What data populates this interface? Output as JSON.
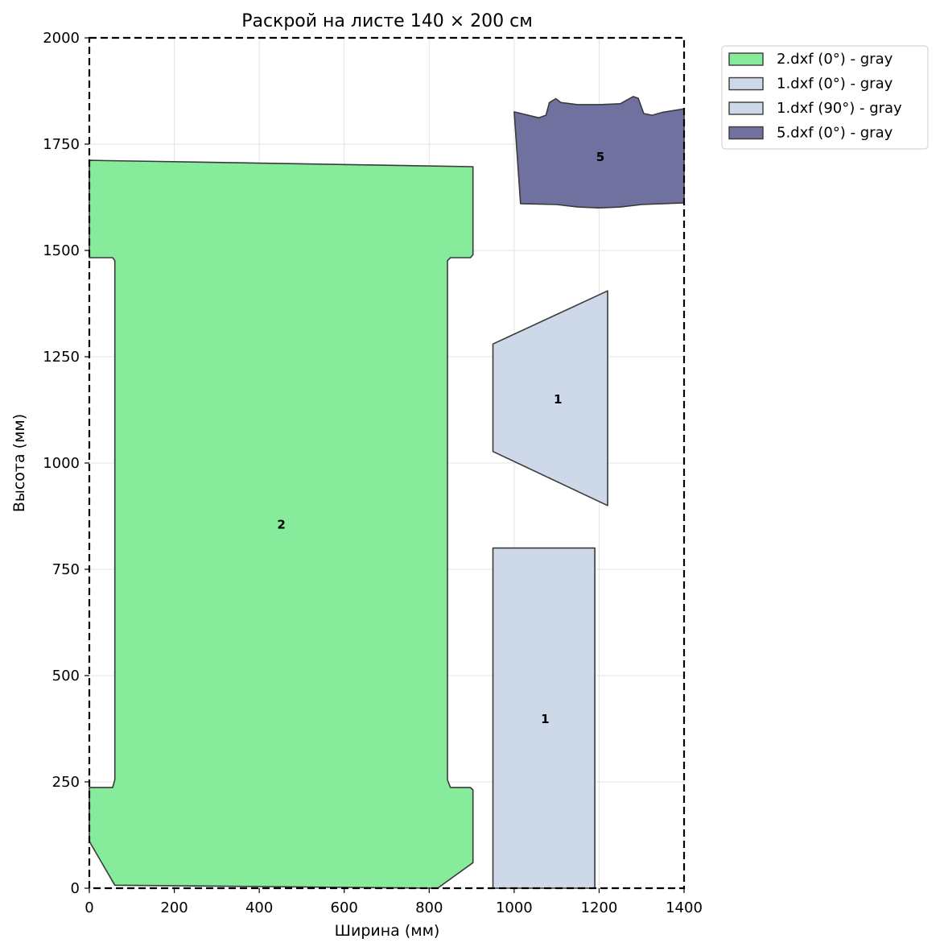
{
  "chart_data": {
    "type": "nesting-layout",
    "title": "Раскрой на листе 140 × 200 см",
    "xlabel": "Ширина (мм)",
    "ylabel": "Высота (мм)",
    "xlim": [
      0,
      1400
    ],
    "ylim": [
      0,
      2000
    ],
    "xticks": [
      0,
      200,
      400,
      600,
      800,
      1000,
      1200,
      1400
    ],
    "yticks": [
      0,
      250,
      500,
      750,
      1000,
      1250,
      1500,
      1750,
      2000
    ],
    "grid": true,
    "sheet_border": {
      "width": 1400,
      "height": 2000,
      "style": "dashed"
    },
    "legend": {
      "placement": "outside-top-right",
      "entries": [
        {
          "label": "2.dxf (0°) - gray",
          "color": "#86ec9c"
        },
        {
          "label": "1.dxf (0°) - gray",
          "color": "#cdd9e8"
        },
        {
          "label": "1.dxf (90°) - gray",
          "color": "#cdd9e8"
        },
        {
          "label": "5.dxf (0°) - gray",
          "color": "#71719f"
        }
      ]
    },
    "pieces": [
      {
        "id": "2",
        "legend": "2.dxf (0°) - gray",
        "color": "#86ec9c",
        "label_pos": [
          452,
          855
        ],
        "points": [
          [
            0,
            1712
          ],
          [
            903,
            1697
          ],
          [
            903,
            1490
          ],
          [
            897,
            1483
          ],
          [
            850,
            1483
          ],
          [
            843,
            1476
          ],
          [
            843,
            255
          ],
          [
            850,
            237
          ],
          [
            897,
            237
          ],
          [
            903,
            231
          ],
          [
            903,
            60
          ],
          [
            820,
            0
          ],
          [
            60,
            7
          ],
          [
            0,
            110
          ],
          [
            0,
            237
          ],
          [
            55,
            237
          ],
          [
            60,
            255
          ],
          [
            60,
            1476
          ],
          [
            55,
            1483
          ],
          [
            0,
            1483
          ]
        ]
      },
      {
        "id": "1",
        "legend": "1.dxf (0°) - gray",
        "color": "#cdd9e8",
        "label_pos": [
          1073,
          398
        ],
        "points": [
          [
            950,
            0
          ],
          [
            1190,
            0
          ],
          [
            1190,
            800
          ],
          [
            950,
            800
          ]
        ]
      },
      {
        "id": "1",
        "legend": "1.dxf (90°) - gray",
        "color": "#cdd9e8",
        "label_pos": [
          1103,
          1150
        ],
        "points": [
          [
            950,
            1027
          ],
          [
            1220,
            900
          ],
          [
            1220,
            1405
          ],
          [
            950,
            1280
          ]
        ]
      },
      {
        "id": "5",
        "legend": "5.dxf (0°) - gray",
        "color": "#71719f",
        "label_pos": [
          1203,
          1720
        ],
        "points": [
          [
            1015,
            1610
          ],
          [
            1100,
            1608
          ],
          [
            1150,
            1602
          ],
          [
            1200,
            1600
          ],
          [
            1250,
            1602
          ],
          [
            1300,
            1608
          ],
          [
            1350,
            1610
          ],
          [
            1400,
            1612
          ],
          [
            1400,
            1833
          ],
          [
            1350,
            1825
          ],
          [
            1325,
            1818
          ],
          [
            1305,
            1822
          ],
          [
            1292,
            1858
          ],
          [
            1280,
            1862
          ],
          [
            1250,
            1845
          ],
          [
            1200,
            1843
          ],
          [
            1150,
            1843
          ],
          [
            1110,
            1848
          ],
          [
            1098,
            1857
          ],
          [
            1083,
            1848
          ],
          [
            1075,
            1818
          ],
          [
            1058,
            1812
          ],
          [
            1000,
            1826
          ]
        ]
      }
    ]
  }
}
